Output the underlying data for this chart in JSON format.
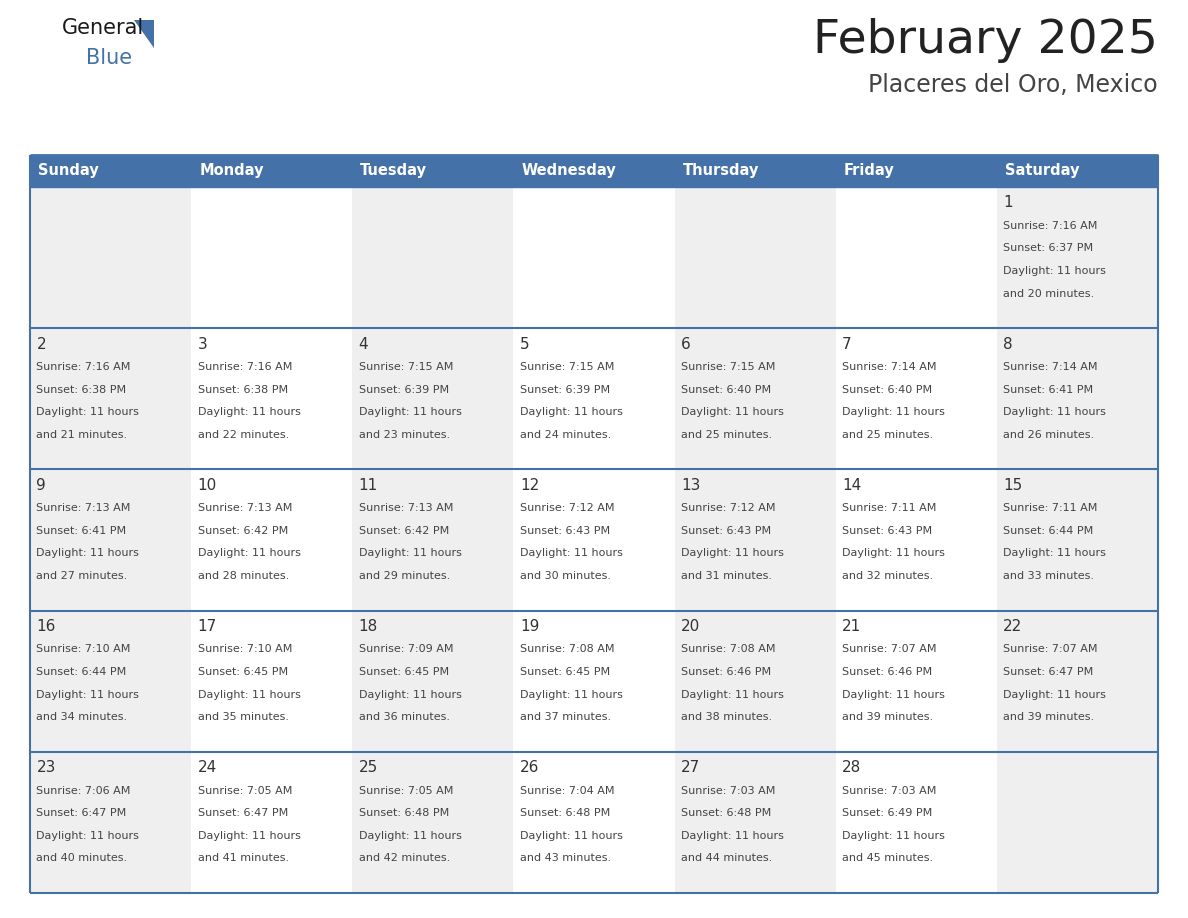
{
  "title": "February 2025",
  "subtitle": "Placeres del Oro, Mexico",
  "days_of_week": [
    "Sunday",
    "Monday",
    "Tuesday",
    "Wednesday",
    "Thursday",
    "Friday",
    "Saturday"
  ],
  "header_bg": "#4472A8",
  "header_text": "#ffffff",
  "cell_bg_light": "#efefef",
  "cell_bg_white": "#ffffff",
  "day_num_color": "#333333",
  "cell_text_color": "#444444",
  "border_color": "#4472A8",
  "calendar_data": [
    [
      null,
      null,
      null,
      null,
      null,
      null,
      {
        "day": 1,
        "sunrise": "7:16 AM",
        "sunset": "6:37 PM",
        "daylight": "11 hours and 20 minutes"
      }
    ],
    [
      {
        "day": 2,
        "sunrise": "7:16 AM",
        "sunset": "6:38 PM",
        "daylight": "11 hours and 21 minutes"
      },
      {
        "day": 3,
        "sunrise": "7:16 AM",
        "sunset": "6:38 PM",
        "daylight": "11 hours and 22 minutes"
      },
      {
        "day": 4,
        "sunrise": "7:15 AM",
        "sunset": "6:39 PM",
        "daylight": "11 hours and 23 minutes"
      },
      {
        "day": 5,
        "sunrise": "7:15 AM",
        "sunset": "6:39 PM",
        "daylight": "11 hours and 24 minutes"
      },
      {
        "day": 6,
        "sunrise": "7:15 AM",
        "sunset": "6:40 PM",
        "daylight": "11 hours and 25 minutes"
      },
      {
        "day": 7,
        "sunrise": "7:14 AM",
        "sunset": "6:40 PM",
        "daylight": "11 hours and 25 minutes"
      },
      {
        "day": 8,
        "sunrise": "7:14 AM",
        "sunset": "6:41 PM",
        "daylight": "11 hours and 26 minutes"
      }
    ],
    [
      {
        "day": 9,
        "sunrise": "7:13 AM",
        "sunset": "6:41 PM",
        "daylight": "11 hours and 27 minutes"
      },
      {
        "day": 10,
        "sunrise": "7:13 AM",
        "sunset": "6:42 PM",
        "daylight": "11 hours and 28 minutes"
      },
      {
        "day": 11,
        "sunrise": "7:13 AM",
        "sunset": "6:42 PM",
        "daylight": "11 hours and 29 minutes"
      },
      {
        "day": 12,
        "sunrise": "7:12 AM",
        "sunset": "6:43 PM",
        "daylight": "11 hours and 30 minutes"
      },
      {
        "day": 13,
        "sunrise": "7:12 AM",
        "sunset": "6:43 PM",
        "daylight": "11 hours and 31 minutes"
      },
      {
        "day": 14,
        "sunrise": "7:11 AM",
        "sunset": "6:43 PM",
        "daylight": "11 hours and 32 minutes"
      },
      {
        "day": 15,
        "sunrise": "7:11 AM",
        "sunset": "6:44 PM",
        "daylight": "11 hours and 33 minutes"
      }
    ],
    [
      {
        "day": 16,
        "sunrise": "7:10 AM",
        "sunset": "6:44 PM",
        "daylight": "11 hours and 34 minutes"
      },
      {
        "day": 17,
        "sunrise": "7:10 AM",
        "sunset": "6:45 PM",
        "daylight": "11 hours and 35 minutes"
      },
      {
        "day": 18,
        "sunrise": "7:09 AM",
        "sunset": "6:45 PM",
        "daylight": "11 hours and 36 minutes"
      },
      {
        "day": 19,
        "sunrise": "7:08 AM",
        "sunset": "6:45 PM",
        "daylight": "11 hours and 37 minutes"
      },
      {
        "day": 20,
        "sunrise": "7:08 AM",
        "sunset": "6:46 PM",
        "daylight": "11 hours and 38 minutes"
      },
      {
        "day": 21,
        "sunrise": "7:07 AM",
        "sunset": "6:46 PM",
        "daylight": "11 hours and 39 minutes"
      },
      {
        "day": 22,
        "sunrise": "7:07 AM",
        "sunset": "6:47 PM",
        "daylight": "11 hours and 39 minutes"
      }
    ],
    [
      {
        "day": 23,
        "sunrise": "7:06 AM",
        "sunset": "6:47 PM",
        "daylight": "11 hours and 40 minutes"
      },
      {
        "day": 24,
        "sunrise": "7:05 AM",
        "sunset": "6:47 PM",
        "daylight": "11 hours and 41 minutes"
      },
      {
        "day": 25,
        "sunrise": "7:05 AM",
        "sunset": "6:48 PM",
        "daylight": "11 hours and 42 minutes"
      },
      {
        "day": 26,
        "sunrise": "7:04 AM",
        "sunset": "6:48 PM",
        "daylight": "11 hours and 43 minutes"
      },
      {
        "day": 27,
        "sunrise": "7:03 AM",
        "sunset": "6:48 PM",
        "daylight": "11 hours and 44 minutes"
      },
      {
        "day": 28,
        "sunrise": "7:03 AM",
        "sunset": "6:49 PM",
        "daylight": "11 hours and 45 minutes"
      },
      null
    ]
  ]
}
